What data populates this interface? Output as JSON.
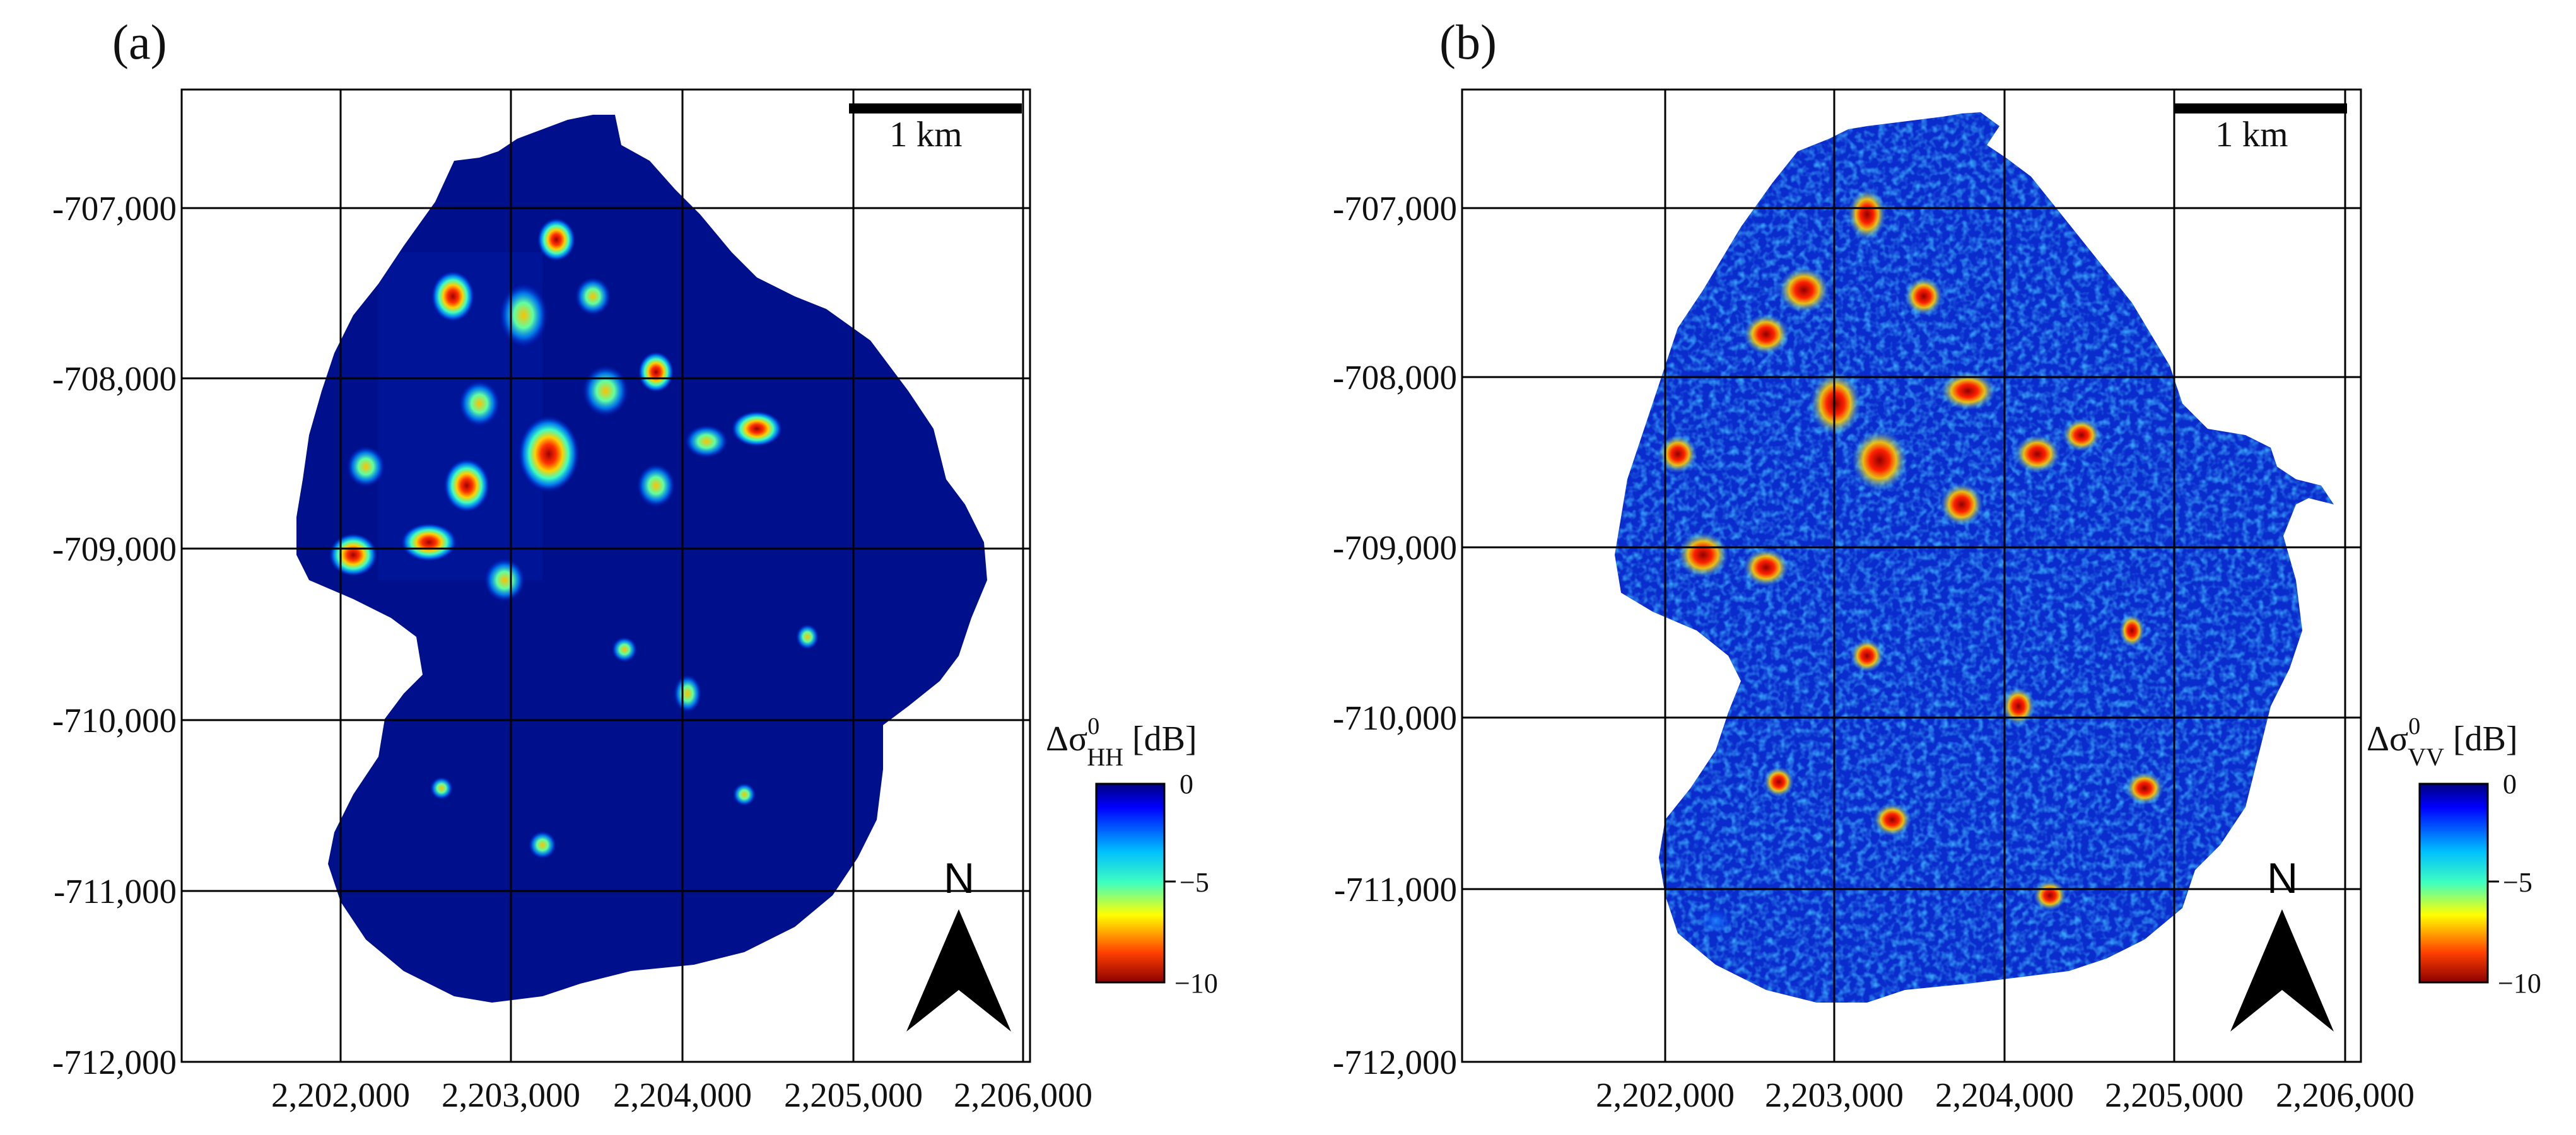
{
  "figure": {
    "colors": {
      "background": "#ffffff",
      "outside": "#ffffff",
      "base_blue": "#00108c"
    },
    "panels": [
      {
        "id": "a",
        "label": "(a)",
        "scale_bar": "1 km",
        "north": "N",
        "colorbar": {
          "title_prefix": "Δσ",
          "title_sup": "0",
          "title_sub": "HH",
          "title_suffix": "[dB]",
          "ticks": [
            "0",
            "−5",
            "−10"
          ],
          "range": [
            -10,
            0
          ]
        },
        "x_ticks": [
          "2,202,000",
          "2,203,000",
          "2,204,000",
          "2,205,000",
          "2,206,000"
        ],
        "y_ticks": [
          "-707,000",
          "-708,000",
          "-709,000",
          "-710,000",
          "-711,000",
          "-712,000"
        ]
      },
      {
        "id": "b",
        "label": "(b)",
        "scale_bar": "1 km",
        "north": "N",
        "colorbar": {
          "title_prefix": "Δσ",
          "title_sup": "0",
          "title_sub": "VV",
          "title_suffix": "[dB]",
          "ticks": [
            "0",
            "−5",
            "−10"
          ],
          "range": [
            -10,
            0
          ]
        },
        "x_ticks": [
          "2,202,000",
          "2,203,000",
          "2,204,000",
          "2,205,000",
          "2,206,000"
        ],
        "y_ticks": [
          "-707,000",
          "-708,000",
          "-709,000",
          "-710,000",
          "-711,000",
          "-712,000"
        ]
      }
    ]
  }
}
